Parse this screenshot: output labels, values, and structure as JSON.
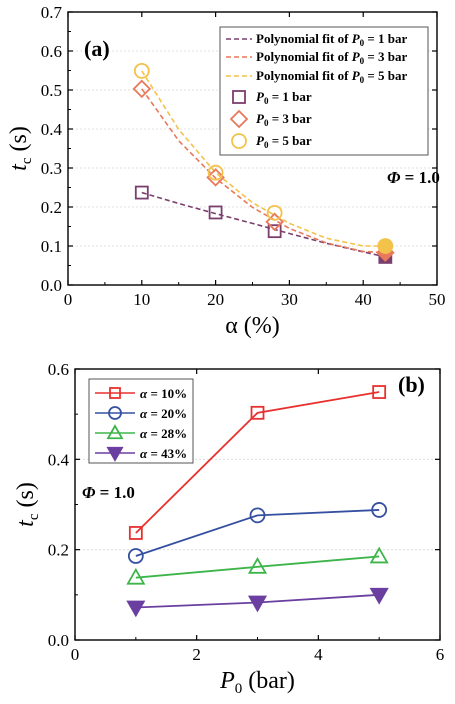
{
  "chart_data": [
    {
      "panel": "(a)",
      "type": "scatter",
      "xlabel": "α (%)",
      "ylabel": "t",
      "ylabel_sub": "c",
      "ylabel_unit": " (s)",
      "xlim": [
        0,
        50
      ],
      "ylim": [
        0,
        0.7
      ],
      "xticks": [
        0,
        10,
        20,
        30,
        40,
        50
      ],
      "yticks": [
        0.0,
        0.1,
        0.2,
        0.3,
        0.4,
        0.5,
        0.6,
        0.7
      ],
      "annotation": "Φ = 1.0",
      "series": [
        {
          "name": "P0 = 1 bar",
          "name_parts": [
            "P",
            "0",
            " = 1 bar"
          ],
          "marker": "square",
          "color": "#7B3F6E",
          "x": [
            10,
            20,
            28,
            43
          ],
          "y": [
            0.237,
            0.186,
            0.138,
            0.072
          ],
          "filled_last": true
        },
        {
          "name": "P0 = 3 bar",
          "name_parts": [
            "P",
            "0",
            " = 3 bar"
          ],
          "marker": "diamond",
          "color": "#E8795A",
          "x": [
            10,
            20,
            28,
            43
          ],
          "y": [
            0.503,
            0.276,
            0.162,
            0.083
          ],
          "filled_last": true
        },
        {
          "name": "P0 = 5 bar",
          "name_parts": [
            "P",
            "0",
            " = 5 bar"
          ],
          "marker": "circle",
          "color": "#F3C24B",
          "x": [
            10,
            20,
            28,
            43
          ],
          "y": [
            0.549,
            0.288,
            0.185,
            0.1
          ],
          "filled_last": true
        }
      ],
      "fits": [
        {
          "name": "Polynomial fit of P0 = 1 bar",
          "name_parts": [
            "Polynomial fit of ",
            "P",
            "0",
            " = 1 bar"
          ],
          "color": "#7B3F6E",
          "x": [
            10,
            15,
            20,
            25,
            30,
            35,
            40,
            43
          ],
          "y": [
            0.237,
            0.209,
            0.183,
            0.158,
            0.132,
            0.107,
            0.085,
            0.072
          ]
        },
        {
          "name": "Polynomial fit of P0 = 3 bar",
          "name_parts": [
            "Polynomial fit of ",
            "P",
            "0",
            " = 3 bar"
          ],
          "color": "#E8795A",
          "x": [
            10,
            15,
            20,
            25,
            30,
            35,
            40,
            43
          ],
          "y": [
            0.503,
            0.37,
            0.274,
            0.199,
            0.145,
            0.108,
            0.086,
            0.083
          ]
        },
        {
          "name": "Polynomial fit of P0 = 5 bar",
          "name_parts": [
            "Polynomial fit of ",
            "P",
            "0",
            " = 5 bar"
          ],
          "color": "#F3C24B",
          "x": [
            10,
            15,
            20,
            25,
            30,
            35,
            40,
            43
          ],
          "y": [
            0.549,
            0.399,
            0.288,
            0.211,
            0.158,
            0.12,
            0.1,
            0.1
          ]
        }
      ]
    },
    {
      "panel": "(b)",
      "type": "line",
      "xlabel": "P",
      "xlabel_sub": "0",
      "xlabel_unit": " (bar)",
      "ylabel": "t",
      "ylabel_sub": "c",
      "ylabel_unit": " (s)",
      "xlim": [
        0,
        6
      ],
      "ylim": [
        0,
        0.6
      ],
      "xticks": [
        0,
        2,
        4,
        6
      ],
      "yticks": [
        0.0,
        0.2,
        0.4,
        0.6
      ],
      "annotation": "Φ = 1.0",
      "series": [
        {
          "name": "α = 10%",
          "marker": "square",
          "color": "#E8312F",
          "x": [
            1,
            3,
            5
          ],
          "y": [
            0.237,
            0.503,
            0.549
          ]
        },
        {
          "name": "α = 20%",
          "marker": "circle",
          "color": "#3550A0",
          "x": [
            1,
            3,
            5
          ],
          "y": [
            0.186,
            0.276,
            0.288
          ]
        },
        {
          "name": "α = 28%",
          "marker": "triangle-up",
          "color": "#3DB54A",
          "x": [
            1,
            3,
            5
          ],
          "y": [
            0.138,
            0.162,
            0.185
          ]
        },
        {
          "name": "α = 43%",
          "marker": "triangle-down-filled",
          "color": "#6B3FA0",
          "x": [
            1,
            3,
            5
          ],
          "y": [
            0.072,
            0.083,
            0.1
          ]
        }
      ]
    }
  ]
}
